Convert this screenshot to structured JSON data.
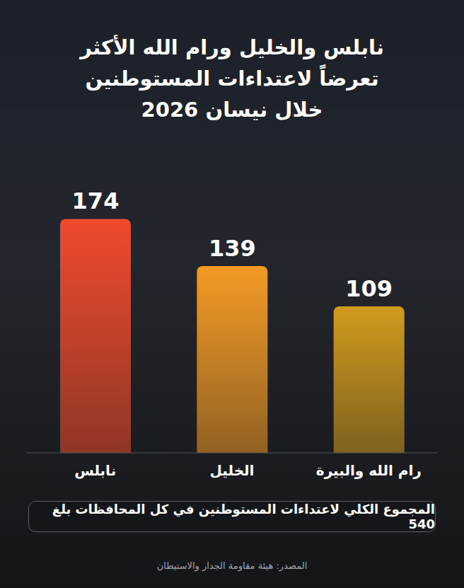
{
  "chart_data": {
    "type": "bar",
    "title": "نابلس والخليل ورام الله الأكثر تعرضاً لاعتداءات المستوطنين خلال نيسان 2026",
    "categories": [
      "نابلس",
      "الخليل",
      "رام الله والبيرة"
    ],
    "values": [
      174,
      139,
      109
    ],
    "colors": [
      "#ef4a2c",
      "#f39a24",
      "#d09a1c"
    ],
    "ylim": [
      0,
      200
    ],
    "grid": false,
    "data_labels": true,
    "tick_labels": "x",
    "note": "المجموع الكلي لاعتداءات المستوطنين في كل المحافظات بلغ 540",
    "source": "المصدر: هيئة مقاومة الجدار والاستيطان"
  }
}
